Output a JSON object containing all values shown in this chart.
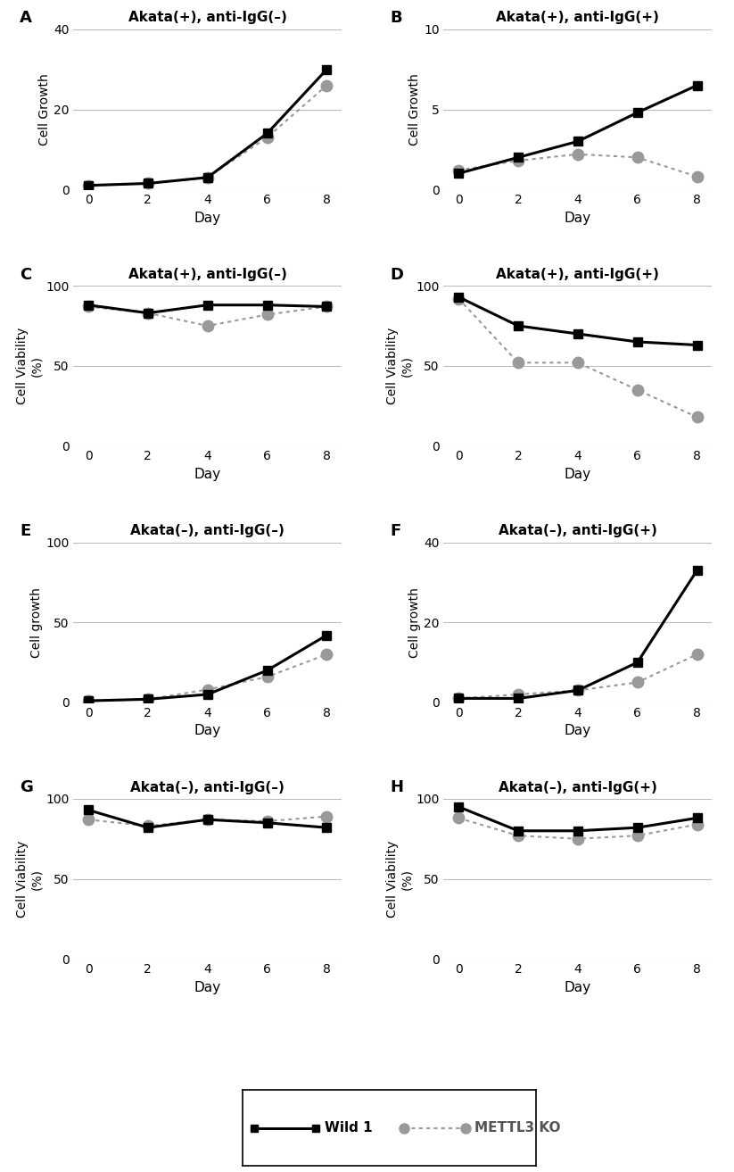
{
  "days": [
    0,
    2,
    4,
    6,
    8
  ],
  "panels": {
    "A": {
      "title": "Akata(+), anti-IgG(–)",
      "ylabel": "Cell Growth",
      "ylim": [
        0,
        40
      ],
      "yticks": [
        0,
        20,
        40
      ],
      "wild": [
        1.0,
        1.5,
        3.0,
        14.0,
        30.0
      ],
      "ko": [
        1.0,
        1.5,
        3.0,
        13.0,
        26.0
      ]
    },
    "B": {
      "title": "Akata(+), anti-IgG(+)",
      "ylabel": "Cell Growth",
      "ylim": [
        0,
        10
      ],
      "yticks": [
        0,
        5,
        10
      ],
      "wild": [
        1.0,
        2.0,
        3.0,
        4.8,
        6.5
      ],
      "ko": [
        1.2,
        1.8,
        2.2,
        2.0,
        0.8
      ]
    },
    "C": {
      "title": "Akata(+), anti-IgG(–)",
      "ylabel": "Cell Viability\n(%)",
      "ylim": [
        0,
        100
      ],
      "yticks": [
        0,
        50,
        100
      ],
      "wild": [
        88,
        83,
        88,
        88,
        87
      ],
      "ko": [
        87,
        83,
        75,
        82,
        87
      ]
    },
    "D": {
      "title": "Akata(+), anti-IgG(+)",
      "ylabel": "Cell Viability\n(%)",
      "ylim": [
        0,
        100
      ],
      "yticks": [
        0,
        50,
        100
      ],
      "wild": [
        93,
        75,
        70,
        65,
        63
      ],
      "ko": [
        92,
        52,
        52,
        35,
        18
      ]
    },
    "E": {
      "title": "Akata(–), anti-IgG(–)",
      "ylabel": "Cell growth",
      "ylim": [
        0,
        100
      ],
      "yticks": [
        0,
        50,
        100
      ],
      "wild": [
        1.0,
        2.0,
        5.0,
        20.0,
        42.0
      ],
      "ko": [
        1.0,
        2.0,
        8.0,
        16.0,
        30.0
      ]
    },
    "F": {
      "title": "Akata(–), anti-IgG(+)",
      "ylabel": "Cell growth",
      "ylim": [
        0,
        40
      ],
      "yticks": [
        0,
        20,
        40
      ],
      "wild": [
        1.0,
        1.0,
        3.0,
        10.0,
        33.0
      ],
      "ko": [
        1.0,
        2.0,
        3.0,
        5.0,
        12.0
      ]
    },
    "G": {
      "title": "Akata(–), anti-IgG(–)",
      "ylabel": "Cell Viability\n(%)",
      "ylim": [
        0,
        100
      ],
      "yticks": [
        0,
        50,
        100
      ],
      "wild": [
        93,
        82,
        87,
        85,
        82
      ],
      "ko": [
        87,
        83,
        87,
        86,
        89
      ]
    },
    "H": {
      "title": "Akata(–), anti-IgG(+)",
      "ylabel": "Cell Viability\n(%)",
      "ylim": [
        0,
        100
      ],
      "yticks": [
        0,
        50,
        100
      ],
      "wild": [
        95,
        80,
        80,
        82,
        88
      ],
      "ko": [
        88,
        77,
        75,
        77,
        84
      ]
    }
  },
  "wild_color": "#000000",
  "ko_color": "#999999",
  "wild_label": "Wild 1",
  "ko_label": "METTL3 KO",
  "xlabel": "Day",
  "panel_labels": [
    "A",
    "B",
    "C",
    "D",
    "E",
    "F",
    "G",
    "H"
  ]
}
